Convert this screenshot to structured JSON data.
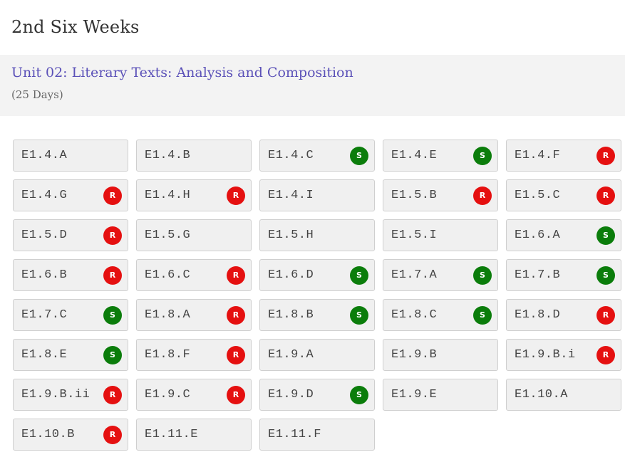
{
  "page": {
    "title": "2nd Six Weeks"
  },
  "unit": {
    "title": "Unit 02: Literary Texts: Analysis and Composition",
    "days": "(25 Days)"
  },
  "colors": {
    "supporting": "#0b7d0b",
    "readiness": "#e51010",
    "unit_link": "#5b51b8"
  },
  "standards": [
    {
      "code": "E1.4.A",
      "badge": ""
    },
    {
      "code": "E1.4.B",
      "badge": ""
    },
    {
      "code": "E1.4.C",
      "badge": "S"
    },
    {
      "code": "E1.4.E",
      "badge": "S"
    },
    {
      "code": "E1.4.F",
      "badge": "R"
    },
    {
      "code": "E1.4.G",
      "badge": "R"
    },
    {
      "code": "E1.4.H",
      "badge": "R"
    },
    {
      "code": "E1.4.I",
      "badge": ""
    },
    {
      "code": "E1.5.B",
      "badge": "R"
    },
    {
      "code": "E1.5.C",
      "badge": "R"
    },
    {
      "code": "E1.5.D",
      "badge": "R"
    },
    {
      "code": "E1.5.G",
      "badge": ""
    },
    {
      "code": "E1.5.H",
      "badge": ""
    },
    {
      "code": "E1.5.I",
      "badge": ""
    },
    {
      "code": "E1.6.A",
      "badge": "S"
    },
    {
      "code": "E1.6.B",
      "badge": "R"
    },
    {
      "code": "E1.6.C",
      "badge": "R"
    },
    {
      "code": "E1.6.D",
      "badge": "S"
    },
    {
      "code": "E1.7.A",
      "badge": "S"
    },
    {
      "code": "E1.7.B",
      "badge": "S"
    },
    {
      "code": "E1.7.C",
      "badge": "S"
    },
    {
      "code": "E1.8.A",
      "badge": "R"
    },
    {
      "code": "E1.8.B",
      "badge": "S"
    },
    {
      "code": "E1.8.C",
      "badge": "S"
    },
    {
      "code": "E1.8.D",
      "badge": "R"
    },
    {
      "code": "E1.8.E",
      "badge": "S"
    },
    {
      "code": "E1.8.F",
      "badge": "R"
    },
    {
      "code": "E1.9.A",
      "badge": ""
    },
    {
      "code": "E1.9.B",
      "badge": ""
    },
    {
      "code": "E1.9.B.i",
      "badge": "R"
    },
    {
      "code": "E1.9.B.ii",
      "badge": "R"
    },
    {
      "code": "E1.9.C",
      "badge": "R"
    },
    {
      "code": "E1.9.D",
      "badge": "S"
    },
    {
      "code": "E1.9.E",
      "badge": ""
    },
    {
      "code": "E1.10.A",
      "badge": ""
    },
    {
      "code": "E1.10.B",
      "badge": "R"
    },
    {
      "code": "E1.11.E",
      "badge": ""
    },
    {
      "code": "E1.11.F",
      "badge": ""
    }
  ]
}
